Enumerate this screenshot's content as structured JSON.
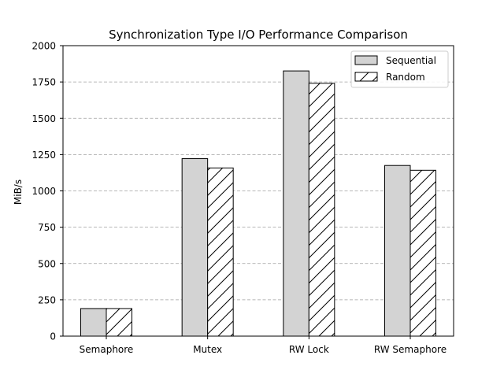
{
  "chart_data": {
    "type": "bar",
    "title": "Synchronization Type I/O Performance Comparison",
    "xlabel": "",
    "ylabel": "MiB/s",
    "categories": [
      "Semaphore",
      "Mutex",
      "RW Lock",
      "RW Semaphore"
    ],
    "series": [
      {
        "name": "Sequential",
        "values": [
          190,
          1222,
          1826,
          1175
        ],
        "color": "#d3d3d3",
        "hatch": "none"
      },
      {
        "name": "Random",
        "values": [
          190,
          1158,
          1741,
          1142
        ],
        "color": "#ffffff",
        "hatch": "diagonal"
      }
    ],
    "ylim": [
      0,
      2000
    ],
    "yticks": [
      0,
      250,
      500,
      750,
      1000,
      1250,
      1500,
      1750,
      2000
    ],
    "ytick_labels": [
      "0",
      "250",
      "500",
      "750",
      "1000",
      "1250",
      "1500",
      "1750",
      "2000"
    ],
    "grid": "y-dashed",
    "grid_color": "#a0a0a0",
    "edge_color": "#000000",
    "legend_position": "top-right"
  }
}
